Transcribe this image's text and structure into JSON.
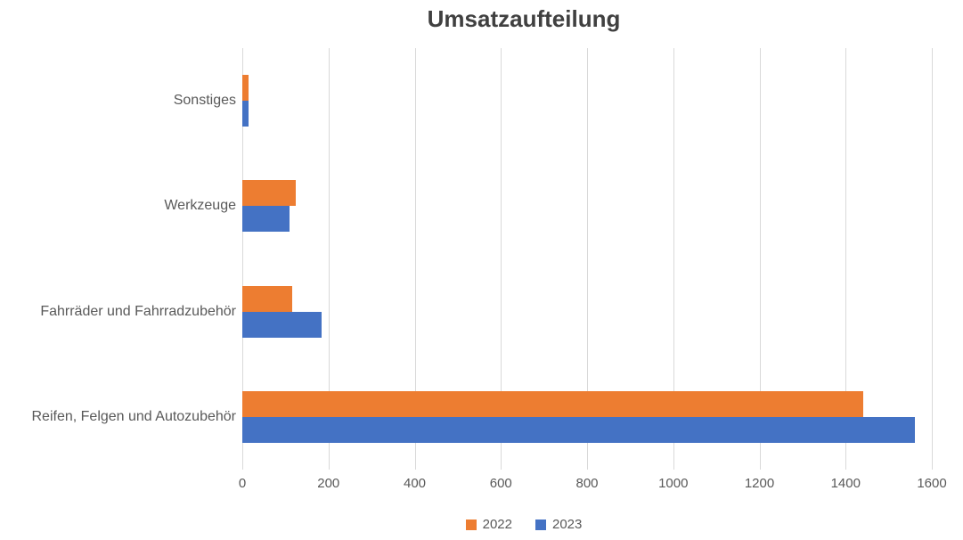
{
  "chart_data": {
    "type": "bar",
    "orientation": "horizontal",
    "title": "Umsatzaufteilung",
    "categories": [
      "Sonstiges",
      "Werkzeuge",
      "Fahrräder und Fahrradzubehör",
      "Reifen, Felgen und Autozubehör"
    ],
    "series": [
      {
        "name": "2022",
        "color": "#ED7D31",
        "values": [
          15,
          125,
          115,
          1440
        ]
      },
      {
        "name": "2023",
        "color": "#4472C4",
        "values": [
          15,
          110,
          185,
          1560
        ]
      }
    ],
    "xlabel": "",
    "ylabel": "",
    "xlim": [
      0,
      1600
    ],
    "xticks": [
      0,
      200,
      400,
      600,
      800,
      1000,
      1200,
      1400,
      1600
    ],
    "grid": true,
    "legend_position": "bottom",
    "colors": {
      "series_2022": "#ED7D31",
      "series_2023": "#4472C4",
      "gridline": "#D9D9D9",
      "axis_text": "#595959",
      "title_text": "#404040",
      "background": "#FFFFFF"
    }
  }
}
